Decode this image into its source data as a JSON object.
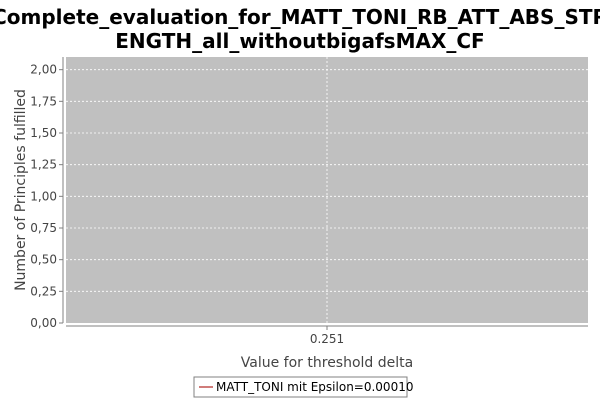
{
  "chart_data": {
    "type": "line",
    "title_lines": [
      "Complete_evaluation_for_MATT_TONI_RB_ATT_ABS_STR",
      "ENGTH_all_withoutbigafsMAX_CF"
    ],
    "xlabel": "Value for threshold delta",
    "ylabel": "Number of Principles fulfilled",
    "x_ticks": [
      "0.251"
    ],
    "y_ticks": [
      {
        "value": 0.0,
        "label": "0,00"
      },
      {
        "value": 0.25,
        "label": "0,25"
      },
      {
        "value": 0.5,
        "label": "0,50"
      },
      {
        "value": 0.75,
        "label": "0,75"
      },
      {
        "value": 1.0,
        "label": "1,00"
      },
      {
        "value": 1.25,
        "label": "1,25"
      },
      {
        "value": 1.5,
        "label": "1,50"
      },
      {
        "value": 1.75,
        "label": "1,75"
      },
      {
        "value": 2.0,
        "label": "2,00"
      }
    ],
    "ylim": [
      0,
      2.1
    ],
    "grid": true,
    "legend_position": "bottom-center",
    "series": [
      {
        "name": "MATT_TONI mit Epsilon=0.00010",
        "color": "#c0504d",
        "x": [
          "0.251"
        ],
        "y": [
          null
        ]
      }
    ],
    "colors": {
      "plot_background": "#c0c0c0",
      "gridline": "#ffffff"
    }
  }
}
